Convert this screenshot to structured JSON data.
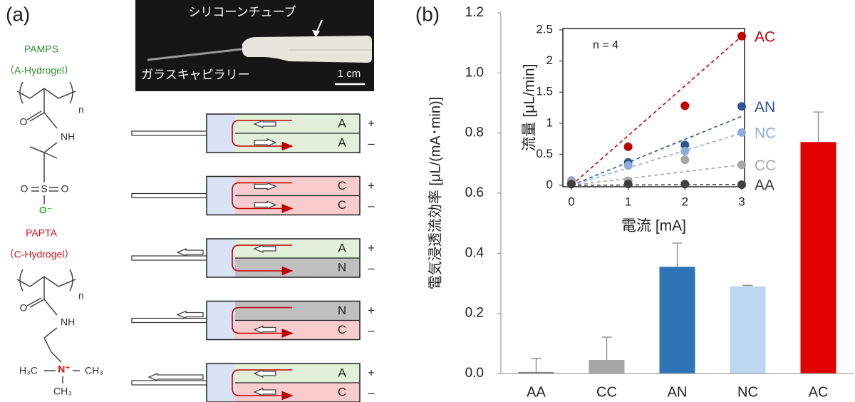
{
  "panel_a": {
    "label": "(a)",
    "pamps": {
      "name": "PAMPS",
      "kind": "（A-Hydrogel）",
      "n": "n",
      "o": "O",
      "nh": "NH",
      "s": "S",
      "o_left": "O",
      "o_right": "O",
      "o_minus": "O⁻"
    },
    "papta": {
      "name": "PAPTA",
      "kind": "（C-Hydrogel）",
      "n": "n",
      "o": "O",
      "nh": "NH",
      "n_plus": "N⁺",
      "h3c": "H₃C",
      "ch3_right": "CH₃",
      "ch3_bottom": "CH₃"
    },
    "photo": {
      "tube": "シリコーンチューブ",
      "capillary": "ガラスキャピラリー",
      "scale": "1 cm"
    },
    "plus": "+",
    "minus": "–",
    "rows": [
      {
        "top": "A",
        "bottom": "A"
      },
      {
        "top": "C",
        "bottom": "C"
      },
      {
        "top": "A",
        "bottom": "N"
      },
      {
        "top": "N",
        "bottom": "C"
      },
      {
        "top": "A",
        "bottom": "C"
      }
    ]
  },
  "chart_data": [
    {
      "type": "bar",
      "panel_label": "(b)",
      "ylabel": "電気浸透流効率 [μL/(mA･min)]",
      "categories": [
        "AA",
        "CC",
        "AN",
        "NC",
        "AC"
      ],
      "values": [
        0.005,
        0.045,
        0.355,
        0.29,
        0.77
      ],
      "errors": [
        0.045,
        0.076,
        0.079,
        0.003,
        0.1
      ],
      "colors": [
        "#7f7f7f",
        "#a6a6a6",
        "#2e75b6",
        "#bdd7ee",
        "#e00000"
      ],
      "ylim": [
        0,
        1.2
      ],
      "yticks": [
        {
          "value": 0,
          "label": "0.0"
        },
        0.2,
        0.4,
        0.6,
        0.8,
        {
          "value": 1,
          "label": "1.0"
        },
        1.2
      ]
    },
    {
      "type": "scatter",
      "xlabel": "電流 [mA]",
      "ylabel": "流量 [μL/min]",
      "annotation": "n = 4",
      "x": [
        0,
        1,
        2,
        3
      ],
      "series": [
        {
          "name": "AC",
          "color": "#c00000",
          "values": [
            0.02,
            0.62,
            1.28,
            2.4
          ],
          "fit_slope": 0.8
        },
        {
          "name": "AN",
          "color": "#2f5597",
          "values": [
            0.03,
            0.37,
            0.65,
            1.27
          ],
          "fit_slope": 0.37
        },
        {
          "name": "NC",
          "color": "#8faadc",
          "values": [
            0.08,
            0.32,
            0.55,
            0.85
          ],
          "fit_slope": 0.28
        },
        {
          "name": "CC",
          "color": "#a6a6a6",
          "values": [
            0.05,
            0.07,
            0.41,
            0.33
          ],
          "fit_slope": 0.11
        },
        {
          "name": "AA",
          "color": "#404040",
          "values": [
            0.02,
            0.02,
            0.02,
            0.01
          ],
          "fit_slope": 0.005
        }
      ],
      "xlim": [
        -0.15,
        3.05
      ],
      "ylim": [
        0,
        2.5
      ],
      "xticks": [
        0,
        1,
        2,
        3
      ],
      "yticks": [
        0,
        0.5,
        1,
        1.5,
        2,
        2.5
      ]
    }
  ]
}
